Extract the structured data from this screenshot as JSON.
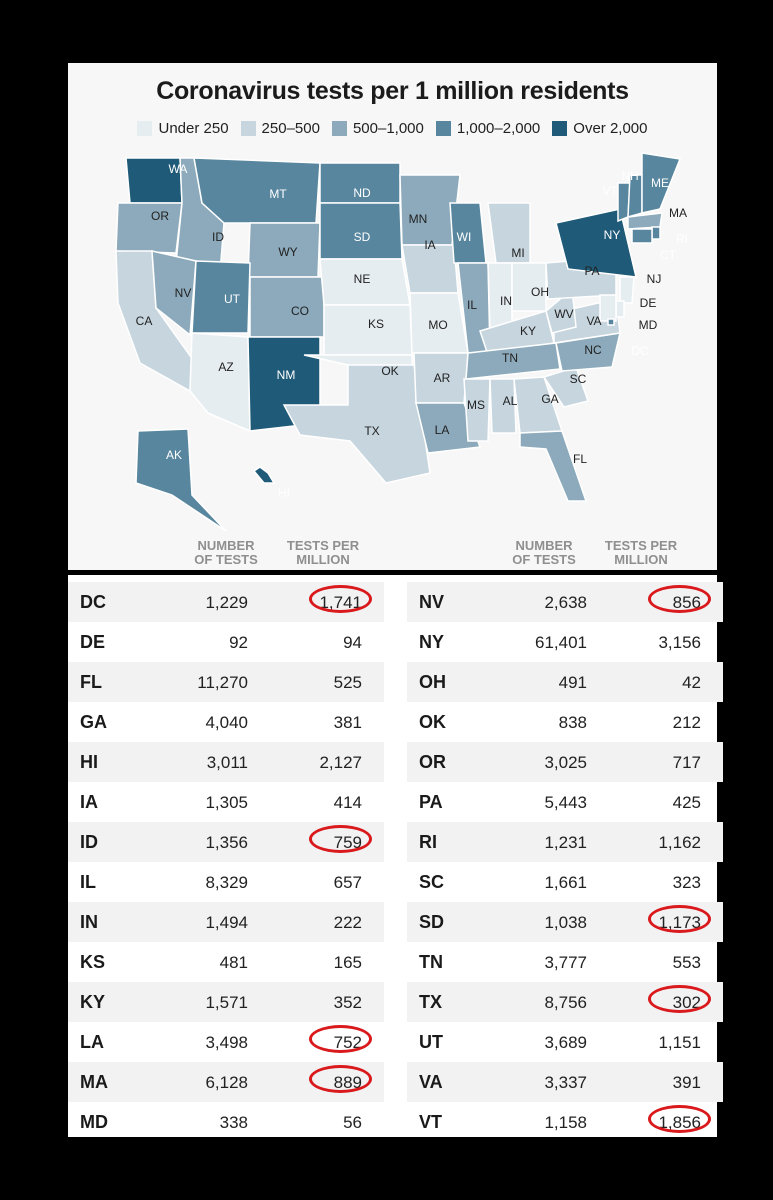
{
  "title": "Coronavirus tests per 1 million residents",
  "legend": [
    {
      "label": "Under 250",
      "color": "#e6edf1"
    },
    {
      "label": "250–500",
      "color": "#c6d5de"
    },
    {
      "label": "500–1,000",
      "color": "#8caabb"
    },
    {
      "label": "1,000–2,000",
      "color": "#57869e"
    },
    {
      "label": "Over 2,000",
      "color": "#1f5a78"
    }
  ],
  "map_states": [
    {
      "abbr": "WA",
      "bin": 4
    },
    {
      "abbr": "OR",
      "bin": 2
    },
    {
      "abbr": "CA",
      "bin": 1
    },
    {
      "abbr": "ID",
      "bin": 2
    },
    {
      "abbr": "NV",
      "bin": 2
    },
    {
      "abbr": "MT",
      "bin": 3
    },
    {
      "abbr": "WY",
      "bin": 2
    },
    {
      "abbr": "UT",
      "bin": 3
    },
    {
      "abbr": "CO",
      "bin": 2
    },
    {
      "abbr": "AZ",
      "bin": 0
    },
    {
      "abbr": "NM",
      "bin": 4
    },
    {
      "abbr": "ND",
      "bin": 3
    },
    {
      "abbr": "SD",
      "bin": 3
    },
    {
      "abbr": "NE",
      "bin": 0
    },
    {
      "abbr": "KS",
      "bin": 0
    },
    {
      "abbr": "OK",
      "bin": 0
    },
    {
      "abbr": "TX",
      "bin": 1
    },
    {
      "abbr": "MN",
      "bin": 2
    },
    {
      "abbr": "IA",
      "bin": 1
    },
    {
      "abbr": "MO",
      "bin": 0
    },
    {
      "abbr": "AR",
      "bin": 1
    },
    {
      "abbr": "LA",
      "bin": 2
    },
    {
      "abbr": "WI",
      "bin": 3
    },
    {
      "abbr": "IL",
      "bin": 2
    },
    {
      "abbr": "MI",
      "bin": 1
    },
    {
      "abbr": "IN",
      "bin": 0
    },
    {
      "abbr": "OH",
      "bin": 0
    },
    {
      "abbr": "KY",
      "bin": 1
    },
    {
      "abbr": "TN",
      "bin": 2
    },
    {
      "abbr": "MS",
      "bin": 1
    },
    {
      "abbr": "AL",
      "bin": 1
    },
    {
      "abbr": "GA",
      "bin": 1
    },
    {
      "abbr": "FL",
      "bin": 2
    },
    {
      "abbr": "SC",
      "bin": 1
    },
    {
      "abbr": "NC",
      "bin": 2
    },
    {
      "abbr": "VA",
      "bin": 1
    },
    {
      "abbr": "WV",
      "bin": 1
    },
    {
      "abbr": "PA",
      "bin": 1
    },
    {
      "abbr": "NY",
      "bin": 4
    },
    {
      "abbr": "VT",
      "bin": 3
    },
    {
      "abbr": "NH",
      "bin": 3
    },
    {
      "abbr": "ME",
      "bin": 3
    },
    {
      "abbr": "MA",
      "bin": 2
    },
    {
      "abbr": "RI",
      "bin": 3
    },
    {
      "abbr": "CT",
      "bin": 3
    },
    {
      "abbr": "NJ",
      "bin": 0
    },
    {
      "abbr": "DE",
      "bin": 0
    },
    {
      "abbr": "MD",
      "bin": 0
    },
    {
      "abbr": "DC",
      "bin": 3
    },
    {
      "abbr": "AK",
      "bin": 3
    },
    {
      "abbr": "HI",
      "bin": 4
    }
  ],
  "headers": {
    "number_of_tests": [
      "NUMBER",
      "OF TESTS"
    ],
    "tests_per_million": [
      "TESTS PER",
      "MILLION"
    ]
  },
  "table_left": [
    {
      "state": "DC",
      "tests": "1,229",
      "per_million": "1,741",
      "circled": true
    },
    {
      "state": "DE",
      "tests": "92",
      "per_million": "94",
      "circled": false
    },
    {
      "state": "FL",
      "tests": "11,270",
      "per_million": "525",
      "circled": false
    },
    {
      "state": "GA",
      "tests": "4,040",
      "per_million": "381",
      "circled": false
    },
    {
      "state": "HI",
      "tests": "3,011",
      "per_million": "2,127",
      "circled": false
    },
    {
      "state": "IA",
      "tests": "1,305",
      "per_million": "414",
      "circled": false
    },
    {
      "state": "ID",
      "tests": "1,356",
      "per_million": "759",
      "circled": true
    },
    {
      "state": "IL",
      "tests": "8,329",
      "per_million": "657",
      "circled": false
    },
    {
      "state": "IN",
      "tests": "1,494",
      "per_million": "222",
      "circled": false
    },
    {
      "state": "KS",
      "tests": "481",
      "per_million": "165",
      "circled": false
    },
    {
      "state": "KY",
      "tests": "1,571",
      "per_million": "352",
      "circled": false
    },
    {
      "state": "LA",
      "tests": "3,498",
      "per_million": "752",
      "circled": true
    },
    {
      "state": "MA",
      "tests": "6,128",
      "per_million": "889",
      "circled": true
    },
    {
      "state": "MD",
      "tests": "338",
      "per_million": "56",
      "circled": false
    }
  ],
  "table_right": [
    {
      "state": "NV",
      "tests": "2,638",
      "per_million": "856",
      "circled": true
    },
    {
      "state": "NY",
      "tests": "61,401",
      "per_million": "3,156",
      "circled": false
    },
    {
      "state": "OH",
      "tests": "491",
      "per_million": "42",
      "circled": false
    },
    {
      "state": "OK",
      "tests": "838",
      "per_million": "212",
      "circled": false
    },
    {
      "state": "OR",
      "tests": "3,025",
      "per_million": "717",
      "circled": false
    },
    {
      "state": "PA",
      "tests": "5,443",
      "per_million": "425",
      "circled": false
    },
    {
      "state": "RI",
      "tests": "1,231",
      "per_million": "1,162",
      "circled": false
    },
    {
      "state": "SC",
      "tests": "1,661",
      "per_million": "323",
      "circled": false
    },
    {
      "state": "SD",
      "tests": "1,038",
      "per_million": "1,173",
      "circled": true
    },
    {
      "state": "TN",
      "tests": "3,777",
      "per_million": "553",
      "circled": false
    },
    {
      "state": "TX",
      "tests": "8,756",
      "per_million": "302",
      "circled": true
    },
    {
      "state": "UT",
      "tests": "3,689",
      "per_million": "1,151",
      "circled": false
    },
    {
      "state": "VA",
      "tests": "3,337",
      "per_million": "391",
      "circled": false
    },
    {
      "state": "VT",
      "tests": "1,158",
      "per_million": "1,856",
      "circled": true
    }
  ],
  "highlight_color": "#d9191c"
}
